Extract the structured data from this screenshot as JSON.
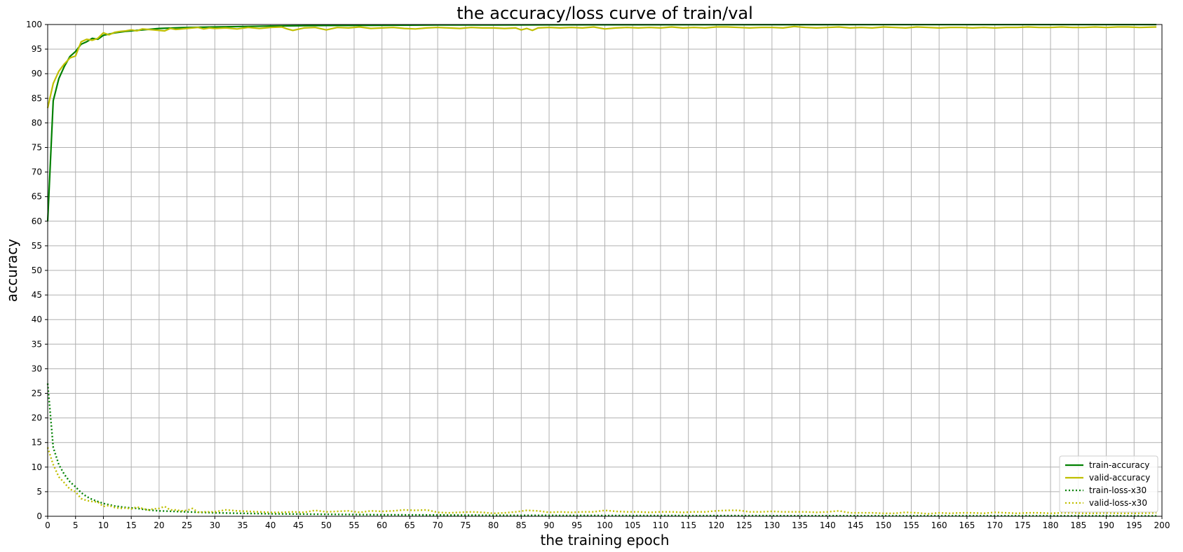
{
  "chart_data": {
    "type": "line",
    "title": "the accuracy/loss curve of train/val",
    "xlabel": "the training epoch",
    "ylabel": "accuracy",
    "xlim": [
      0,
      200
    ],
    "ylim": [
      0,
      100
    ],
    "x_ticks": [
      0,
      5,
      10,
      15,
      20,
      25,
      30,
      35,
      40,
      45,
      50,
      55,
      60,
      65,
      70,
      75,
      80,
      85,
      90,
      95,
      100,
      105,
      110,
      115,
      120,
      125,
      130,
      135,
      140,
      145,
      150,
      155,
      160,
      165,
      170,
      175,
      180,
      185,
      190,
      195,
      200
    ],
    "y_ticks": [
      0,
      5,
      10,
      15,
      20,
      25,
      30,
      35,
      40,
      45,
      50,
      55,
      60,
      65,
      70,
      75,
      80,
      85,
      90,
      95,
      100
    ],
    "grid": true,
    "legend_position": "lower-right",
    "series": [
      {
        "name": "train-accuracy",
        "color": "#008000",
        "style": "solid",
        "points": [
          [
            0,
            60
          ],
          [
            1,
            84.5
          ],
          [
            2,
            89
          ],
          [
            3,
            91.5
          ],
          [
            4,
            93.5
          ],
          [
            5,
            94.5
          ],
          [
            6,
            96
          ],
          [
            7,
            96.5
          ],
          [
            8,
            97.2
          ],
          [
            9,
            97
          ],
          [
            10,
            97.8
          ],
          [
            12,
            98.3
          ],
          [
            14,
            98.6
          ],
          [
            16,
            98.8
          ],
          [
            18,
            99
          ],
          [
            20,
            99.2
          ],
          [
            25,
            99.4
          ],
          [
            30,
            99.5
          ],
          [
            35,
            99.6
          ],
          [
            40,
            99.7
          ],
          [
            50,
            99.8
          ],
          [
            60,
            99.85
          ],
          [
            70,
            99.9
          ],
          [
            80,
            99.92
          ],
          [
            100,
            99.95
          ],
          [
            150,
            99.97
          ],
          [
            199,
            99.98
          ]
        ]
      },
      {
        "name": "valid-accuracy",
        "color": "#bfbf00",
        "style": "solid",
        "points": [
          [
            0,
            83
          ],
          [
            1,
            88
          ],
          [
            2,
            90.5
          ],
          [
            3,
            92
          ],
          [
            4,
            93.2
          ],
          [
            5,
            93.6
          ],
          [
            6,
            96.5
          ],
          [
            7,
            97
          ],
          [
            8,
            96.8
          ],
          [
            9,
            97.2
          ],
          [
            10,
            98.3
          ],
          [
            11,
            97.9
          ],
          [
            12,
            98.4
          ],
          [
            13,
            98.6
          ],
          [
            14,
            98.7
          ],
          [
            15,
            98.9
          ],
          [
            16,
            98.7
          ],
          [
            17,
            99.1
          ],
          [
            18,
            99
          ],
          [
            19,
            98.9
          ],
          [
            20,
            98.8
          ],
          [
            21,
            98.7
          ],
          [
            22,
            99.2
          ],
          [
            23,
            99
          ],
          [
            24,
            99.1
          ],
          [
            25,
            99.2
          ],
          [
            26,
            99.3
          ],
          [
            27,
            99.4
          ],
          [
            28,
            99.1
          ],
          [
            29,
            99.3
          ],
          [
            30,
            99.2
          ],
          [
            32,
            99.3
          ],
          [
            34,
            99.1
          ],
          [
            36,
            99.4
          ],
          [
            38,
            99.2
          ],
          [
            40,
            99.4
          ],
          [
            42,
            99.5
          ],
          [
            43,
            99.1
          ],
          [
            44,
            98.8
          ],
          [
            46,
            99.3
          ],
          [
            48,
            99.4
          ],
          [
            50,
            98.9
          ],
          [
            52,
            99.4
          ],
          [
            54,
            99.3
          ],
          [
            56,
            99.5
          ],
          [
            58,
            99.2
          ],
          [
            60,
            99.3
          ],
          [
            62,
            99.4
          ],
          [
            64,
            99.2
          ],
          [
            66,
            99.1
          ],
          [
            68,
            99.3
          ],
          [
            70,
            99.4
          ],
          [
            72,
            99.3
          ],
          [
            74,
            99.2
          ],
          [
            76,
            99.4
          ],
          [
            78,
            99.3
          ],
          [
            80,
            99.3
          ],
          [
            82,
            99.2
          ],
          [
            84,
            99.3
          ],
          [
            85,
            98.9
          ],
          [
            86,
            99.2
          ],
          [
            87,
            98.8
          ],
          [
            88,
            99.3
          ],
          [
            90,
            99.4
          ],
          [
            92,
            99.3
          ],
          [
            94,
            99.4
          ],
          [
            96,
            99.3
          ],
          [
            98,
            99.5
          ],
          [
            100,
            99.1
          ],
          [
            102,
            99.3
          ],
          [
            104,
            99.4
          ],
          [
            106,
            99.3
          ],
          [
            108,
            99.4
          ],
          [
            110,
            99.3
          ],
          [
            112,
            99.5
          ],
          [
            114,
            99.3
          ],
          [
            116,
            99.4
          ],
          [
            118,
            99.3
          ],
          [
            120,
            99.5
          ],
          [
            122,
            99.5
          ],
          [
            124,
            99.4
          ],
          [
            126,
            99.3
          ],
          [
            128,
            99.4
          ],
          [
            130,
            99.4
          ],
          [
            132,
            99.3
          ],
          [
            134,
            99.6
          ],
          [
            136,
            99.4
          ],
          [
            138,
            99.3
          ],
          [
            140,
            99.4
          ],
          [
            142,
            99.5
          ],
          [
            144,
            99.3
          ],
          [
            146,
            99.4
          ],
          [
            148,
            99.3
          ],
          [
            150,
            99.5
          ],
          [
            152,
            99.4
          ],
          [
            154,
            99.3
          ],
          [
            156,
            99.5
          ],
          [
            158,
            99.4
          ],
          [
            160,
            99.3
          ],
          [
            162,
            99.4
          ],
          [
            164,
            99.4
          ],
          [
            166,
            99.3
          ],
          [
            168,
            99.4
          ],
          [
            170,
            99.3
          ],
          [
            172,
            99.4
          ],
          [
            174,
            99.4
          ],
          [
            176,
            99.5
          ],
          [
            178,
            99.4
          ],
          [
            180,
            99.4
          ],
          [
            182,
            99.5
          ],
          [
            184,
            99.4
          ],
          [
            186,
            99.4
          ],
          [
            188,
            99.5
          ],
          [
            190,
            99.4
          ],
          [
            192,
            99.5
          ],
          [
            194,
            99.5
          ],
          [
            196,
            99.4
          ],
          [
            199,
            99.5
          ]
        ]
      },
      {
        "name": "train-loss-x30",
        "color": "#008000",
        "style": "dotted",
        "points": [
          [
            0,
            27
          ],
          [
            1,
            14
          ],
          [
            2,
            10.5
          ],
          [
            3,
            8.5
          ],
          [
            4,
            7
          ],
          [
            5,
            6
          ],
          [
            6,
            4.8
          ],
          [
            7,
            4
          ],
          [
            8,
            3.4
          ],
          [
            9,
            3
          ],
          [
            10,
            2.6
          ],
          [
            12,
            2.1
          ],
          [
            14,
            1.8
          ],
          [
            16,
            1.6
          ],
          [
            18,
            1.3
          ],
          [
            20,
            1.1
          ],
          [
            25,
            0.9
          ],
          [
            30,
            0.7
          ],
          [
            35,
            0.6
          ],
          [
            40,
            0.5
          ],
          [
            50,
            0.4
          ],
          [
            60,
            0.3
          ],
          [
            70,
            0.25
          ],
          [
            80,
            0.2
          ],
          [
            100,
            0.15
          ],
          [
            150,
            0.1
          ],
          [
            199,
            0.08
          ]
        ]
      },
      {
        "name": "valid-loss-x30",
        "color": "#bfbf00",
        "style": "dotted",
        "points": [
          [
            0,
            14
          ],
          [
            1,
            10.5
          ],
          [
            2,
            8
          ],
          [
            3,
            6.8
          ],
          [
            4,
            5.5
          ],
          [
            5,
            5
          ],
          [
            6,
            3.6
          ],
          [
            7,
            3.2
          ],
          [
            8,
            3
          ],
          [
            9,
            2.9
          ],
          [
            10,
            2
          ],
          [
            11,
            2.2
          ],
          [
            12,
            1.8
          ],
          [
            13,
            1.6
          ],
          [
            14,
            1.7
          ],
          [
            15,
            1.5
          ],
          [
            16,
            1.9
          ],
          [
            17,
            1.6
          ],
          [
            18,
            1.3
          ],
          [
            19,
            1.5
          ],
          [
            20,
            1.6
          ],
          [
            21,
            2
          ],
          [
            22,
            1.3
          ],
          [
            23,
            1.3
          ],
          [
            24,
            1.1
          ],
          [
            25,
            1.2
          ],
          [
            26,
            1.6
          ],
          [
            27,
            0.8
          ],
          [
            28,
            0.9
          ],
          [
            30,
            0.9
          ],
          [
            32,
            1.3
          ],
          [
            34,
            1.1
          ],
          [
            36,
            1
          ],
          [
            38,
            0.9
          ],
          [
            40,
            0.8
          ],
          [
            42,
            0.8
          ],
          [
            44,
            0.9
          ],
          [
            46,
            0.8
          ],
          [
            48,
            1.2
          ],
          [
            50,
            0.9
          ],
          [
            52,
            1
          ],
          [
            54,
            1.1
          ],
          [
            56,
            0.8
          ],
          [
            58,
            1.1
          ],
          [
            60,
            1
          ],
          [
            62,
            1.1
          ],
          [
            64,
            1.3
          ],
          [
            66,
            1.2
          ],
          [
            68,
            1.3
          ],
          [
            70,
            0.8
          ],
          [
            72,
            0.7
          ],
          [
            74,
            0.8
          ],
          [
            76,
            0.9
          ],
          [
            78,
            0.8
          ],
          [
            80,
            0.6
          ],
          [
            82,
            0.7
          ],
          [
            84,
            0.9
          ],
          [
            86,
            1.2
          ],
          [
            88,
            1.1
          ],
          [
            90,
            0.8
          ],
          [
            92,
            0.9
          ],
          [
            94,
            0.8
          ],
          [
            96,
            0.9
          ],
          [
            98,
            0.9
          ],
          [
            100,
            1.2
          ],
          [
            102,
            1
          ],
          [
            104,
            0.9
          ],
          [
            106,
            0.9
          ],
          [
            108,
            0.8
          ],
          [
            110,
            0.9
          ],
          [
            112,
            0.9
          ],
          [
            114,
            0.8
          ],
          [
            116,
            0.9
          ],
          [
            118,
            0.9
          ],
          [
            120,
            1.1
          ],
          [
            122,
            1.2
          ],
          [
            124,
            1.2
          ],
          [
            126,
            0.9
          ],
          [
            128,
            0.9
          ],
          [
            130,
            1
          ],
          [
            132,
            0.9
          ],
          [
            134,
            0.9
          ],
          [
            136,
            0.9
          ],
          [
            138,
            0.8
          ],
          [
            140,
            0.9
          ],
          [
            142,
            1.1
          ],
          [
            144,
            0.7
          ],
          [
            146,
            0.7
          ],
          [
            148,
            0.7
          ],
          [
            150,
            0.6
          ],
          [
            152,
            0.6
          ],
          [
            154,
            0.8
          ],
          [
            156,
            0.7
          ],
          [
            158,
            0.5
          ],
          [
            160,
            0.7
          ],
          [
            162,
            0.6
          ],
          [
            164,
            0.7
          ],
          [
            166,
            0.7
          ],
          [
            168,
            0.6
          ],
          [
            170,
            0.8
          ],
          [
            172,
            0.7
          ],
          [
            174,
            0.6
          ],
          [
            176,
            0.7
          ],
          [
            178,
            0.7
          ],
          [
            180,
            0.6
          ],
          [
            182,
            0.7
          ],
          [
            184,
            0.7
          ],
          [
            186,
            0.6
          ],
          [
            188,
            0.6
          ],
          [
            190,
            0.7
          ],
          [
            192,
            0.6
          ],
          [
            194,
            0.6
          ],
          [
            196,
            0.6
          ],
          [
            199,
            0.7
          ]
        ]
      }
    ]
  }
}
